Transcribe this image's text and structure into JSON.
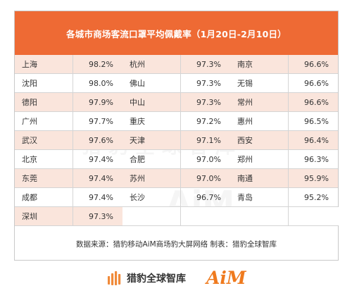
{
  "chart_data": {
    "type": "table",
    "title": "各城市商场客流口罩平均佩戴率（1月20日-2月10日）",
    "rows": [
      [
        {
          "city": "上海",
          "value": "98.2%"
        },
        {
          "city": "杭州",
          "value": "97.3%"
        },
        {
          "city": "南京",
          "value": "96.6%"
        }
      ],
      [
        {
          "city": "沈阳",
          "value": "98.0%"
        },
        {
          "city": "佛山",
          "value": "97.3%"
        },
        {
          "city": "无锡",
          "value": "96.6%"
        }
      ],
      [
        {
          "city": "德阳",
          "value": "97.9%"
        },
        {
          "city": "中山",
          "value": "97.3%"
        },
        {
          "city": "常州",
          "value": "96.6%"
        }
      ],
      [
        {
          "city": "广州",
          "value": "97.7%"
        },
        {
          "city": "重庆",
          "value": "97.2%"
        },
        {
          "city": "惠州",
          "value": "96.5%"
        }
      ],
      [
        {
          "city": "武汉",
          "value": "97.6%"
        },
        {
          "city": "天津",
          "value": "97.1%"
        },
        {
          "city": "西安",
          "value": "96.4%"
        }
      ],
      [
        {
          "city": "北京",
          "value": "97.4%"
        },
        {
          "city": "合肥",
          "value": "97.0%"
        },
        {
          "city": "郑州",
          "value": "96.3%"
        }
      ],
      [
        {
          "city": "东莞",
          "value": "97.4%"
        },
        {
          "city": "苏州",
          "value": "97.0%"
        },
        {
          "city": "南通",
          "value": "95.9%"
        }
      ],
      [
        {
          "city": "成都",
          "value": "97.4%"
        },
        {
          "city": "长沙",
          "value": "96.7%"
        },
        {
          "city": "青岛",
          "value": "95.2%"
        }
      ],
      [
        {
          "city": "深圳",
          "value": "97.3%"
        }
      ]
    ],
    "source": "数据来源：猎豹移动AiM商场豹大屏网络  制表：猎豹全球智库"
  },
  "watermark": {
    "text": "猎豹全球智库",
    "mark": "AiM"
  },
  "footer": {
    "logo_text": "猎豹全球智库",
    "aim_text": "AiM"
  },
  "colors": {
    "header": "#ee6a34",
    "alt_row": "#fae5dc",
    "aim_logo": "#ef7a1e",
    "logo_bar": "#f08a3a"
  }
}
